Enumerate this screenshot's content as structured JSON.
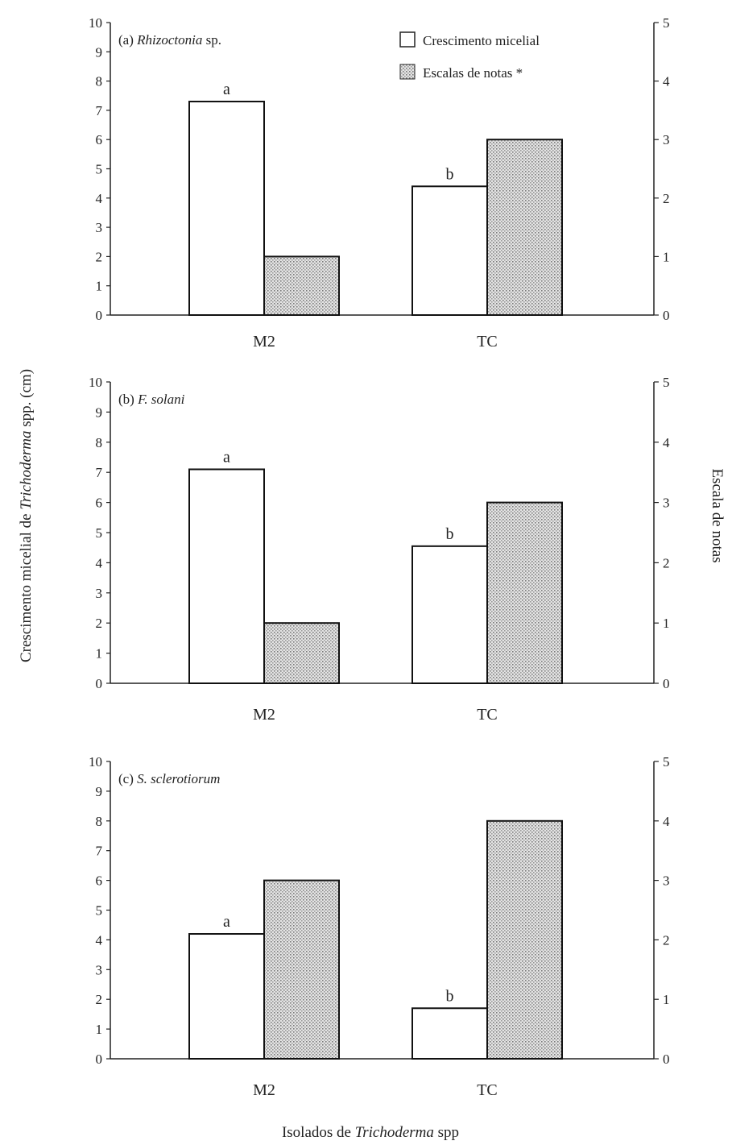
{
  "figure": {
    "y_left_label": "Crescimento micelial de Trichoderma spp. (cm)",
    "y_left_label_parts": [
      "Crescimento micelial de ",
      "Trichoderma",
      " spp. (cm)"
    ],
    "y_right_label": "Escala de notas",
    "x_label_parts": [
      "Isolados de ",
      "Trichoderma",
      " spp"
    ]
  },
  "legend": {
    "items": [
      {
        "label": "Crescimento micelial",
        "pattern": "open"
      },
      {
        "label": "Escalas de notas *",
        "pattern": "dotted"
      }
    ]
  },
  "chart_data": [
    {
      "type": "bar",
      "title_prefix": "(a) ",
      "title_italic": "Rhizoctonia",
      "title_suffix": " sp.",
      "categories": [
        "M2",
        "TC"
      ],
      "ylim_left": [
        0,
        10
      ],
      "ylim_right": [
        0,
        5
      ],
      "series": [
        {
          "name": "Crescimento micelial",
          "axis": "left",
          "values": [
            7.3,
            4.4
          ],
          "labels": [
            "a",
            "b"
          ]
        },
        {
          "name": "Escalas de notas *",
          "axis": "right",
          "values": [
            1,
            3
          ]
        }
      ]
    },
    {
      "type": "bar",
      "title_prefix": "(b) ",
      "title_italic": "F. solani",
      "title_suffix": "",
      "categories": [
        "M2",
        "TC"
      ],
      "ylim_left": [
        0,
        10
      ],
      "ylim_right": [
        0,
        5
      ],
      "series": [
        {
          "name": "Crescimento micelial",
          "axis": "left",
          "values": [
            7.1,
            4.55
          ],
          "labels": [
            "a",
            "b"
          ]
        },
        {
          "name": "Escalas de notas *",
          "axis": "right",
          "values": [
            1,
            3
          ]
        }
      ]
    },
    {
      "type": "bar",
      "title_prefix": "(c) ",
      "title_italic": "S. sclerotiorum",
      "title_suffix": "",
      "categories": [
        "M2",
        "TC"
      ],
      "ylim_left": [
        0,
        10
      ],
      "ylim_right": [
        0,
        5
      ],
      "series": [
        {
          "name": "Crescimento micelial",
          "axis": "left",
          "values": [
            4.2,
            1.7
          ],
          "labels": [
            "a",
            "b"
          ]
        },
        {
          "name": "Escalas de notas *",
          "axis": "right",
          "values": [
            3,
            4
          ]
        }
      ]
    }
  ]
}
